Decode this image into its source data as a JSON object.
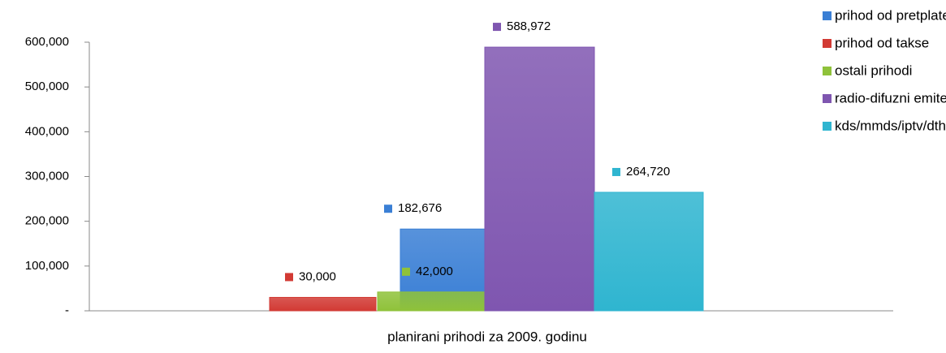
{
  "chart_data": {
    "type": "bar",
    "categories": [
      "planirani prihodi za 2009. godinu"
    ],
    "series": [
      {
        "name": "prihod od pretplate",
        "color": "#3a7fd5",
        "values": [
          182676
        ],
        "value_labels": [
          "182,676"
        ]
      },
      {
        "name": "prihod od takse",
        "color": "#d23a34",
        "values": [
          30000
        ],
        "value_labels": [
          "30,000"
        ]
      },
      {
        "name": "ostali prihodi",
        "color": "#8fc23a",
        "values": [
          42000
        ],
        "value_labels": [
          "42,000"
        ]
      },
      {
        "name": "radio-difuzni emiteri",
        "color": "#7f56b0",
        "values": [
          588972
        ],
        "value_labels": [
          "588,972"
        ]
      },
      {
        "name": "kds/mmds/iptv/dth operatori",
        "color": "#2fb5d0",
        "values": [
          264720
        ],
        "value_labels": [
          "264,720"
        ]
      }
    ],
    "ylim": [
      0,
      600000
    ],
    "yticks": [
      {
        "value": 0,
        "label": "-"
      },
      {
        "value": 100000,
        "label": "100,000"
      },
      {
        "value": 200000,
        "label": "200,000"
      },
      {
        "value": 300000,
        "label": "300,000"
      },
      {
        "value": 400000,
        "label": "400,000"
      },
      {
        "value": 500000,
        "label": "500,000"
      },
      {
        "value": 600000,
        "label": "600,000"
      }
    ],
    "legend": "right"
  }
}
